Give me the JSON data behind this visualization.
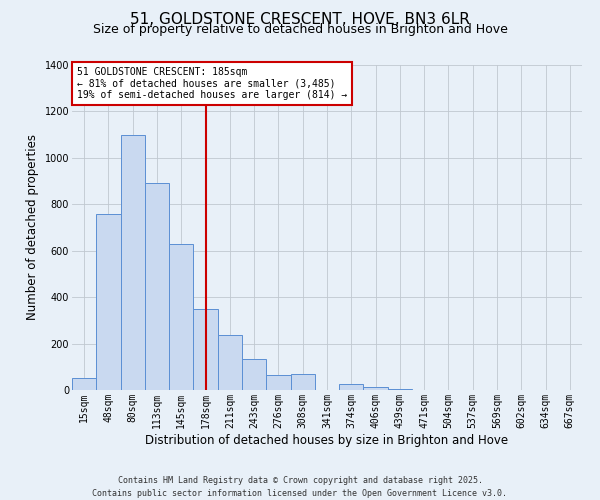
{
  "title": "51, GOLDSTONE CRESCENT, HOVE, BN3 6LR",
  "subtitle": "Size of property relative to detached houses in Brighton and Hove",
  "xlabel": "Distribution of detached houses by size in Brighton and Hove",
  "ylabel": "Number of detached properties",
  "bar_labels": [
    "15sqm",
    "48sqm",
    "80sqm",
    "113sqm",
    "145sqm",
    "178sqm",
    "211sqm",
    "243sqm",
    "276sqm",
    "308sqm",
    "341sqm",
    "374sqm",
    "406sqm",
    "439sqm",
    "471sqm",
    "504sqm",
    "537sqm",
    "569sqm",
    "602sqm",
    "634sqm",
    "667sqm"
  ],
  "bar_values": [
    50,
    760,
    1100,
    890,
    630,
    350,
    235,
    135,
    65,
    70,
    0,
    25,
    15,
    5,
    2,
    1,
    0,
    1,
    0,
    0,
    1
  ],
  "bar_color": "#c9d9f0",
  "bar_edge_color": "#5b8fd4",
  "vline_x": 5.0,
  "vline_color": "#cc0000",
  "annotation_line1": "51 GOLDSTONE CRESCENT: 185sqm",
  "annotation_line2": "← 81% of detached houses are smaller (3,485)",
  "annotation_line3": "19% of semi-detached houses are larger (814) →",
  "annotation_box_color": "#ffffff",
  "annotation_box_edge": "#cc0000",
  "ylim": [
    0,
    1400
  ],
  "yticks": [
    0,
    200,
    400,
    600,
    800,
    1000,
    1200,
    1400
  ],
  "bg_color": "#e8f0f8",
  "plot_bg_color": "#e8f0f8",
  "footer_line1": "Contains HM Land Registry data © Crown copyright and database right 2025.",
  "footer_line2": "Contains public sector information licensed under the Open Government Licence v3.0.",
  "title_fontsize": 11,
  "subtitle_fontsize": 9,
  "xlabel_fontsize": 8.5,
  "ylabel_fontsize": 8.5,
  "annotation_fontsize": 7,
  "tick_fontsize": 7,
  "footer_fontsize": 6
}
